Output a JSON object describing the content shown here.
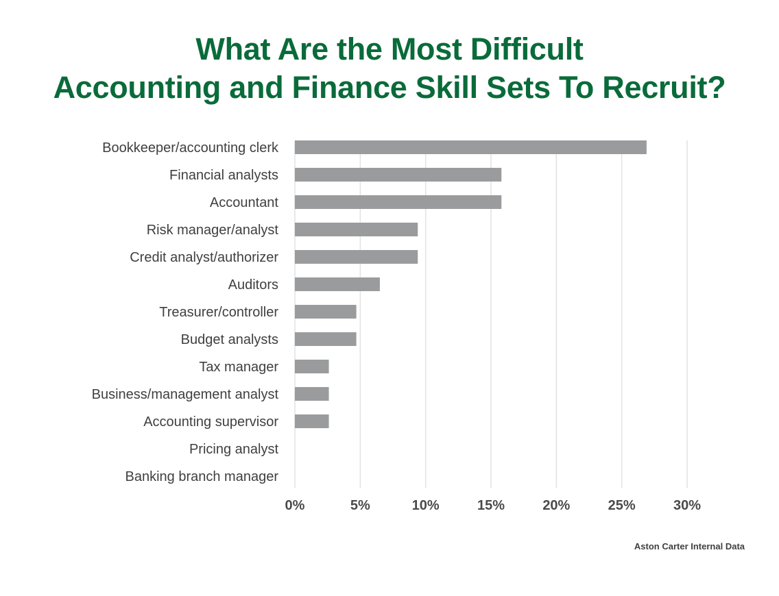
{
  "chart_data": {
    "type": "bar",
    "orientation": "horizontal",
    "title": [
      "What Are the Most Difficult",
      "Accounting and Finance Skill Sets To Recruit?"
    ],
    "categories": [
      "Bookkeeper/accounting clerk",
      "Financial analysts",
      "Accountant",
      "Risk manager/analyst",
      "Credit analyst/authorizer",
      "Auditors",
      "Treasurer/controller",
      "Budget analysts",
      "Tax manager",
      "Business/management analyst",
      "Accounting supervisor",
      "Pricing analyst",
      "Banking branch manager"
    ],
    "values": [
      26.9,
      15.8,
      15.8,
      9.4,
      9.4,
      6.5,
      4.7,
      4.7,
      2.6,
      2.6,
      2.6,
      0,
      0
    ],
    "xlim": [
      0,
      30
    ],
    "xticks": [
      0,
      5,
      10,
      15,
      20,
      25,
      30
    ],
    "xtick_labels": [
      "0%",
      "5%",
      "10%",
      "15%",
      "20%",
      "25%",
      "30%"
    ],
    "xlabel": "",
    "ylabel": "",
    "grid": "vertical",
    "bar_color": "#9a9b9d",
    "title_color": "#0a6b3a",
    "source": "Aston Carter Internal Data"
  }
}
